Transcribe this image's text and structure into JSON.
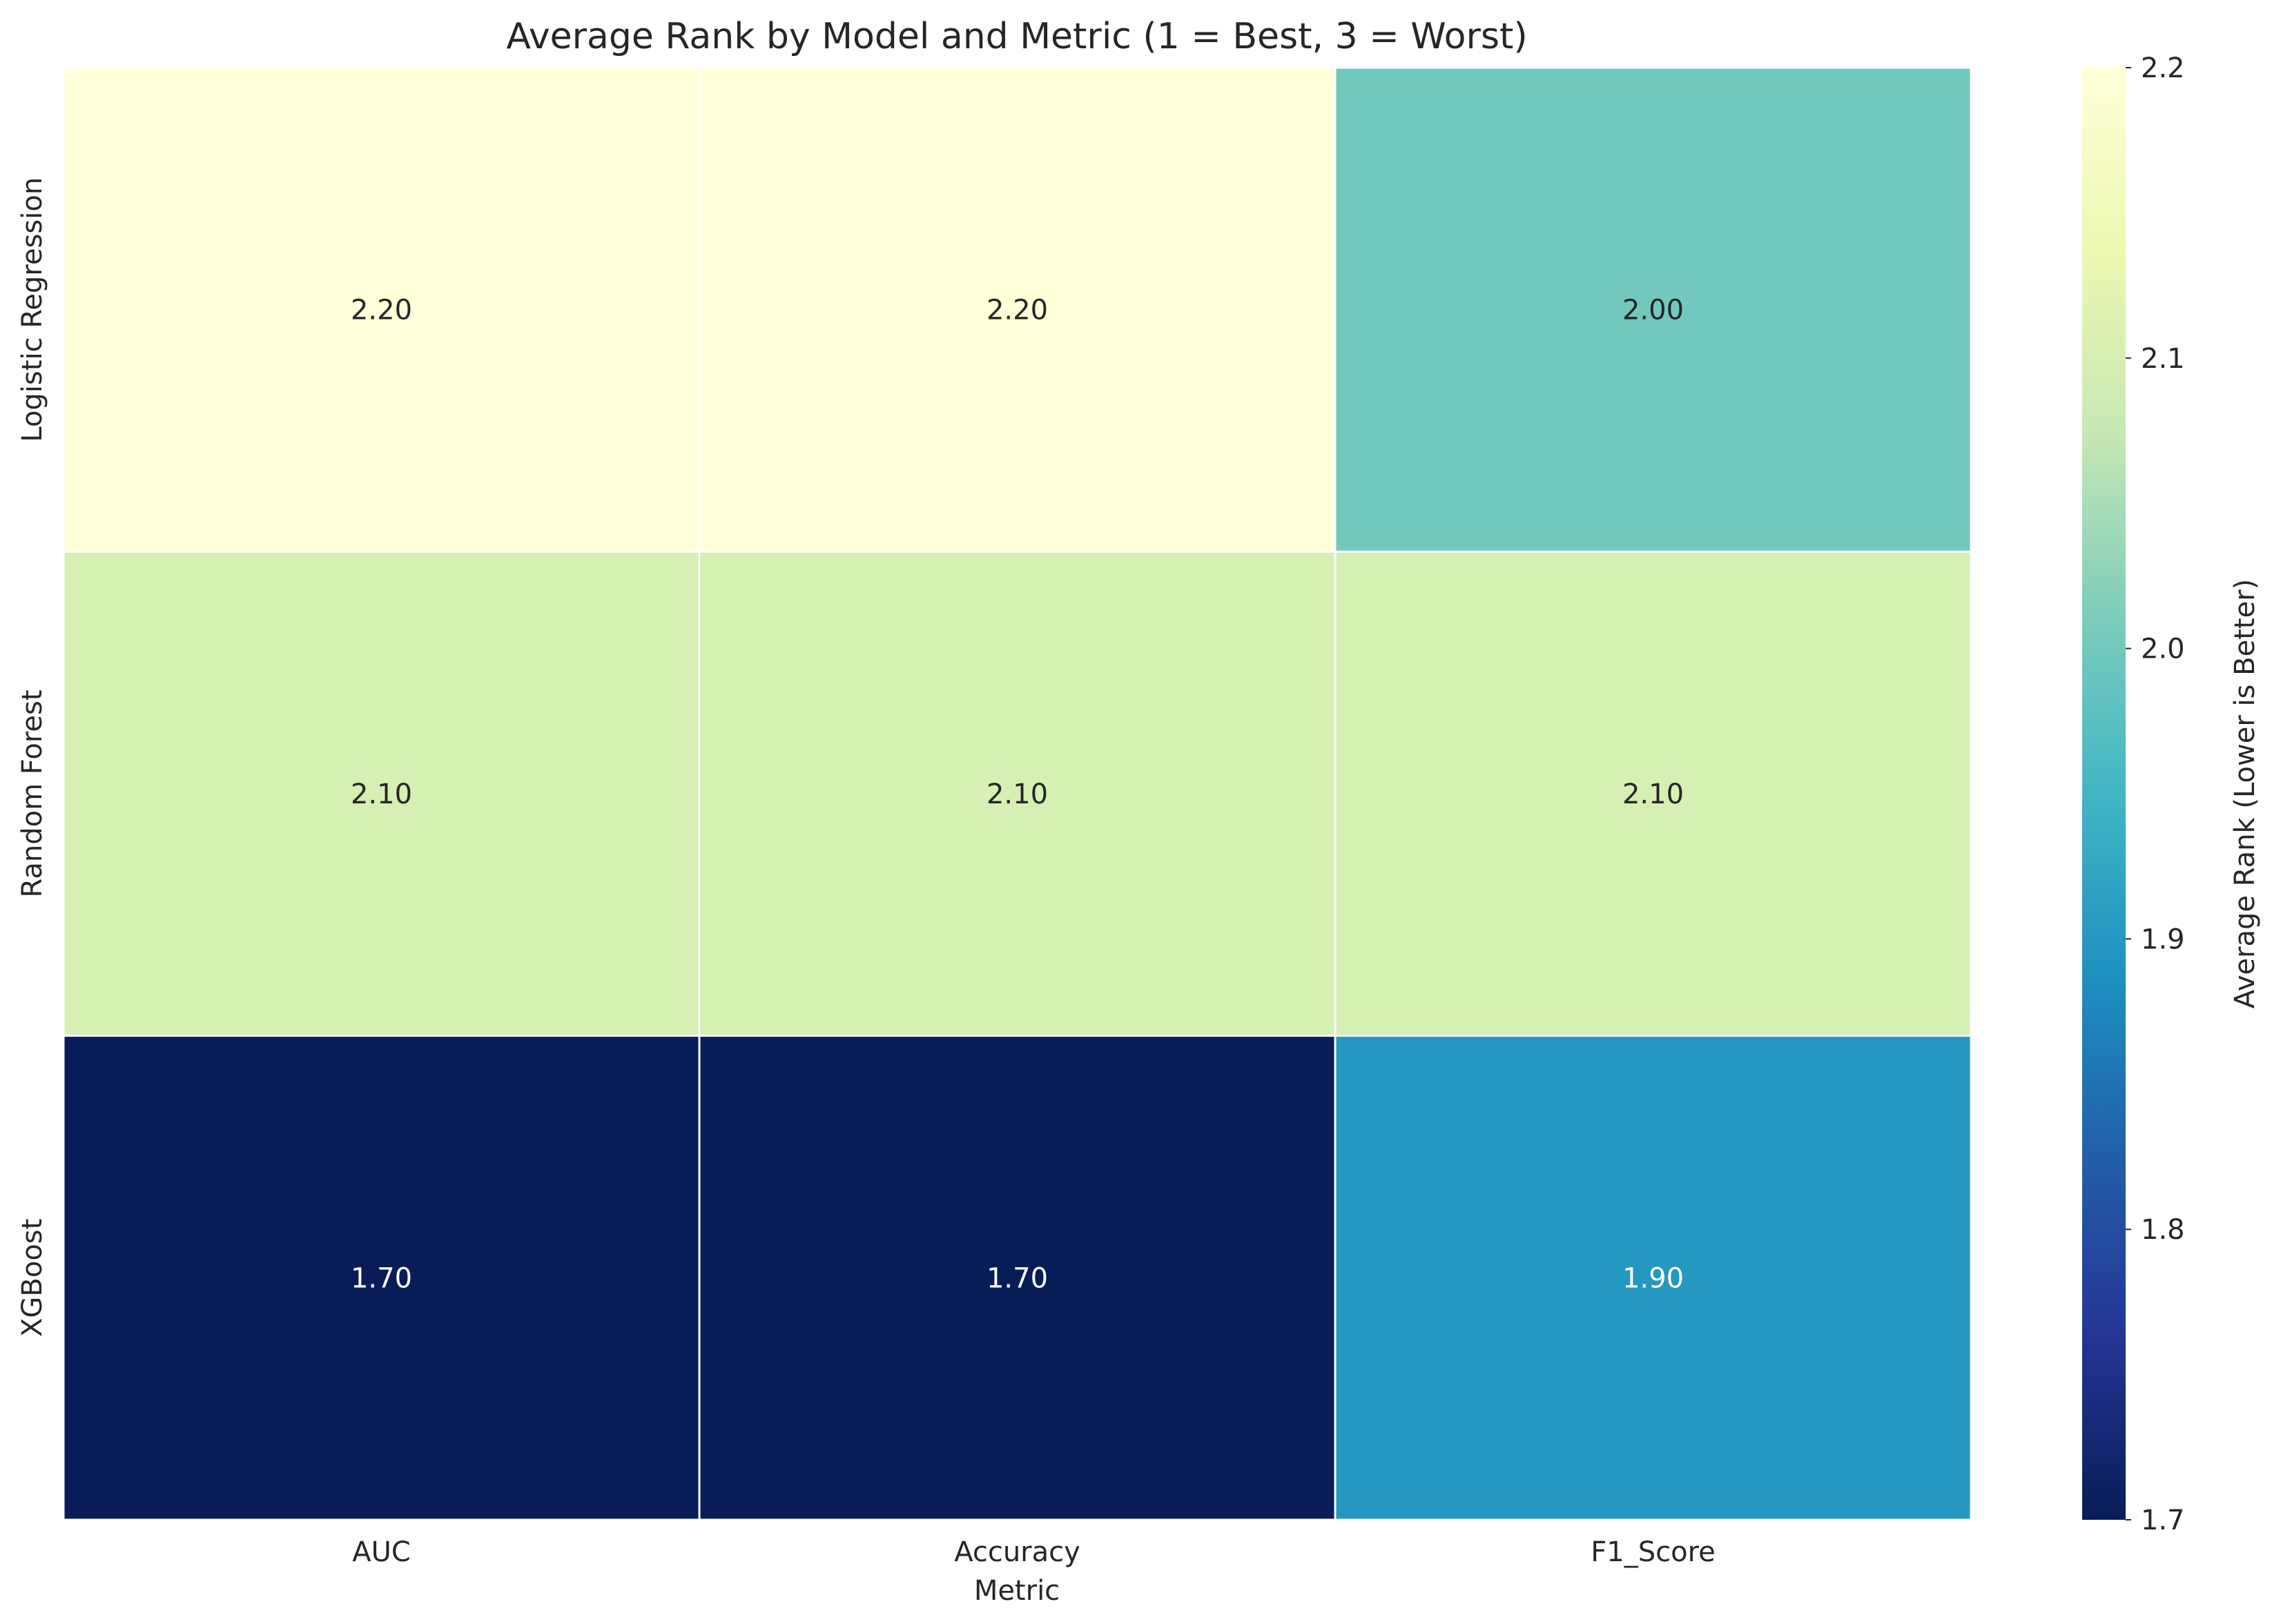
{
  "chart_data": {
    "type": "heatmap",
    "title": "Average Rank by Model and Metric (1 = Best, 3 = Worst)",
    "xlabel": "Metric",
    "ylabel": "",
    "columns": [
      "AUC",
      "Accuracy",
      "F1_Score"
    ],
    "rows": [
      "Logistic Regression",
      "Random Forest",
      "XGBoost"
    ],
    "values": [
      [
        2.2,
        2.2,
        2.0
      ],
      [
        2.1,
        2.1,
        2.1
      ],
      [
        1.7,
        1.7,
        1.9
      ]
    ],
    "value_format": "2 decimals",
    "colorbar": {
      "label": "Average Rank (Lower is Better)",
      "min": 1.7,
      "max": 2.2,
      "ticks": [
        "1.7",
        "1.8",
        "1.9",
        "2.0",
        "2.1",
        "2.2"
      ],
      "colormap": "YlGnBu",
      "stops": [
        "#081d58",
        "#253494",
        "#225ea8",
        "#1d91c0",
        "#41b6c4",
        "#7fcdbb",
        "#c7e9b4",
        "#edf8b1",
        "#ffffd9"
      ]
    },
    "grid": false
  }
}
